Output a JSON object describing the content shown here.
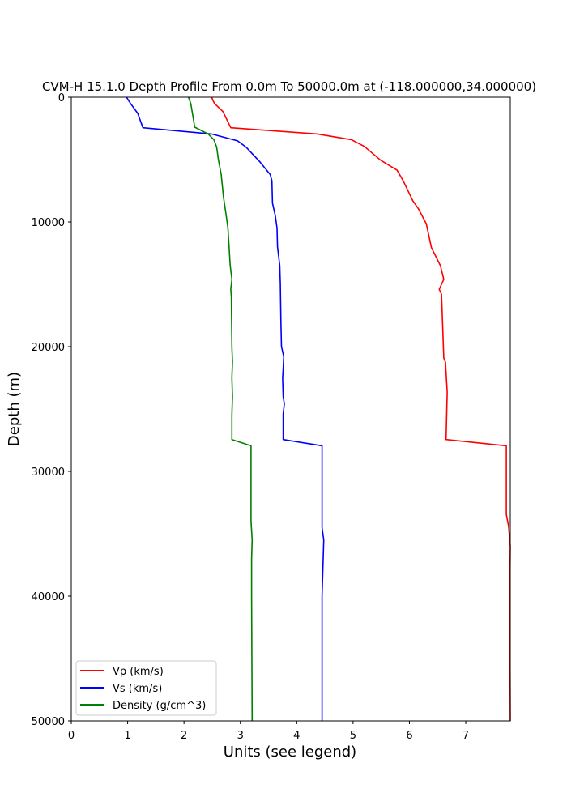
{
  "chart_data": {
    "type": "line",
    "title": "CVM-H 15.1.0 Depth Profile From 0.0m To 50000.0m at (-118.000000,34.000000)",
    "xlabel": "Units (see legend)",
    "ylabel": "Depth (m)",
    "xlim": [
      0,
      7.79
    ],
    "ylim": [
      50000,
      0
    ],
    "y_inverted": true,
    "grid": false,
    "legend_position": "lower left",
    "xticks": [
      0,
      1,
      2,
      3,
      4,
      5,
      6,
      7
    ],
    "yticks": [
      0,
      10000,
      20000,
      30000,
      40000,
      50000
    ],
    "series": [
      {
        "name": "Vp (km/s)",
        "color": "#ff0000",
        "points": [
          [
            2.49,
            0
          ],
          [
            2.54,
            500
          ],
          [
            2.69,
            1150
          ],
          [
            2.83,
            2450
          ],
          [
            4.37,
            2950
          ],
          [
            4.97,
            3400
          ],
          [
            5.2,
            3950
          ],
          [
            5.49,
            5050
          ],
          [
            5.78,
            5850
          ],
          [
            5.89,
            6700
          ],
          [
            6.06,
            8300
          ],
          [
            6.16,
            8950
          ],
          [
            6.3,
            10150
          ],
          [
            6.39,
            12050
          ],
          [
            6.55,
            13500
          ],
          [
            6.61,
            14600
          ],
          [
            6.53,
            15400
          ],
          [
            6.57,
            15800
          ],
          [
            6.61,
            20900
          ],
          [
            6.64,
            21250
          ],
          [
            6.67,
            23650
          ],
          [
            6.65,
            27450
          ],
          [
            7.72,
            27950
          ],
          [
            7.72,
            33450
          ],
          [
            7.76,
            34400
          ],
          [
            7.79,
            36000
          ],
          [
            7.78,
            40000
          ],
          [
            7.79,
            50000
          ]
        ]
      },
      {
        "name": "Vs (km/s)",
        "color": "#0000ff",
        "points": [
          [
            0.98,
            0
          ],
          [
            1.05,
            500
          ],
          [
            1.18,
            1300
          ],
          [
            1.27,
            2450
          ],
          [
            2.49,
            2950
          ],
          [
            2.95,
            3500
          ],
          [
            3.1,
            4000
          ],
          [
            3.35,
            5200
          ],
          [
            3.53,
            6200
          ],
          [
            3.56,
            6700
          ],
          [
            3.57,
            8500
          ],
          [
            3.62,
            9500
          ],
          [
            3.65,
            10500
          ],
          [
            3.66,
            12000
          ],
          [
            3.7,
            13500
          ],
          [
            3.71,
            15000
          ],
          [
            3.72,
            18000
          ],
          [
            3.73,
            20000
          ],
          [
            3.77,
            20800
          ],
          [
            3.76,
            21800
          ],
          [
            3.75,
            22500
          ],
          [
            3.76,
            24000
          ],
          [
            3.78,
            24600
          ],
          [
            3.76,
            25400
          ],
          [
            3.76,
            27450
          ],
          [
            4.45,
            27950
          ],
          [
            4.45,
            30000
          ],
          [
            4.45,
            34500
          ],
          [
            4.48,
            35500
          ],
          [
            4.47,
            37000
          ],
          [
            4.45,
            40000
          ],
          [
            4.45,
            50000
          ]
        ]
      },
      {
        "name": "Density (g/cm^3)",
        "color": "#008000",
        "points": [
          [
            2.08,
            0
          ],
          [
            2.12,
            500
          ],
          [
            2.15,
            1300
          ],
          [
            2.19,
            2400
          ],
          [
            2.43,
            2950
          ],
          [
            2.53,
            3400
          ],
          [
            2.58,
            4000
          ],
          [
            2.61,
            5000
          ],
          [
            2.66,
            6200
          ],
          [
            2.7,
            8000
          ],
          [
            2.75,
            9500
          ],
          [
            2.78,
            10500
          ],
          [
            2.8,
            12000
          ],
          [
            2.82,
            13500
          ],
          [
            2.85,
            14600
          ],
          [
            2.83,
            15400
          ],
          [
            2.84,
            16000
          ],
          [
            2.85,
            20000
          ],
          [
            2.86,
            21200
          ],
          [
            2.85,
            22500
          ],
          [
            2.86,
            24000
          ],
          [
            2.85,
            25500
          ],
          [
            2.85,
            27450
          ],
          [
            3.19,
            27950
          ],
          [
            3.19,
            34000
          ],
          [
            3.21,
            35500
          ],
          [
            3.2,
            37000
          ],
          [
            3.2,
            40000
          ],
          [
            3.21,
            50000
          ]
        ]
      }
    ]
  }
}
